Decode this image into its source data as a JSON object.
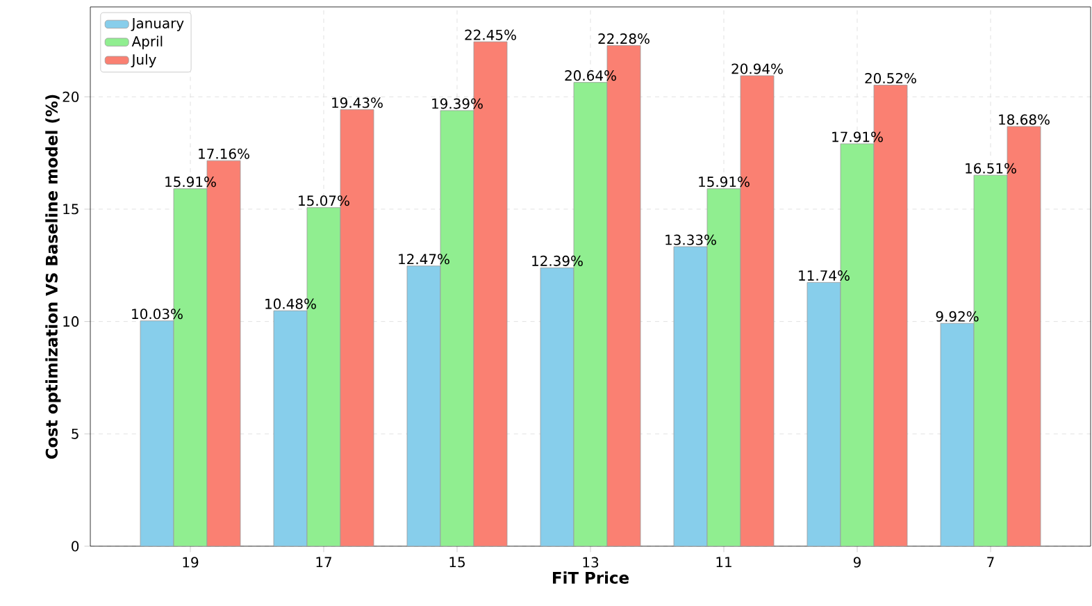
{
  "chart_data": {
    "type": "bar",
    "xlabel": "FiT Price",
    "ylabel": "Cost optimization VS Baseline model (%)",
    "categories": [
      "19",
      "17",
      "15",
      "13",
      "11",
      "9",
      "7"
    ],
    "series": [
      {
        "name": "January",
        "color": "#87ceeb",
        "values": [
          10.03,
          10.48,
          12.47,
          12.39,
          13.33,
          11.74,
          9.92
        ],
        "value_labels": [
          "10.03%",
          "10.48%",
          "12.47%",
          "12.39%",
          "13.33%",
          "11.74%",
          "9.92%"
        ]
      },
      {
        "name": "April",
        "color": "#90ee90",
        "values": [
          15.91,
          15.07,
          19.39,
          20.64,
          15.91,
          17.91,
          16.51
        ],
        "value_labels": [
          "15.91%",
          "15.07%",
          "19.39%",
          "20.64%",
          "15.91%",
          "17.91%",
          "16.51%"
        ]
      },
      {
        "name": "July",
        "color": "#fa8072",
        "values": [
          17.16,
          19.43,
          22.45,
          22.28,
          20.94,
          20.52,
          18.68
        ],
        "value_labels": [
          "17.16%",
          "19.43%",
          "22.45%",
          "22.28%",
          "20.94%",
          "20.52%",
          "18.68%"
        ]
      }
    ],
    "ylim": [
      0,
      24
    ],
    "yticks": [
      0,
      5,
      10,
      15,
      20
    ],
    "grid": true,
    "legend": "top left"
  }
}
